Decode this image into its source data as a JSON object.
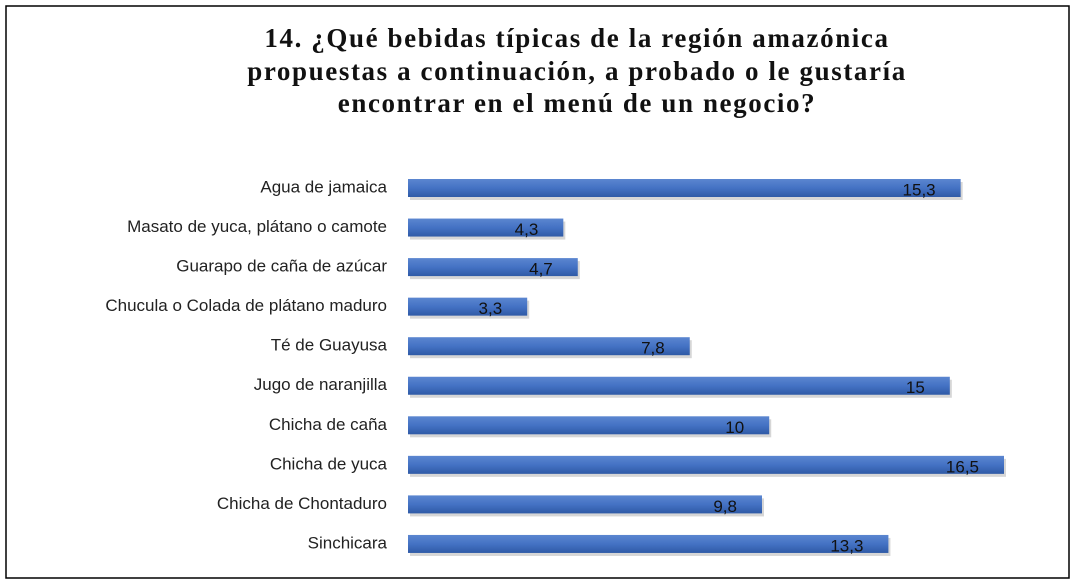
{
  "chart_data": {
    "type": "bar",
    "orientation": "horizontal",
    "title": [
      "14. ¿Qué bebidas típicas de la región amazónica",
      "propuestas a continuación, a probado o le gustaría",
      "encontrar en el menú de un negocio?"
    ],
    "categories": [
      "Agua de jamaica",
      "Masato de yuca, plátano o camote",
      "Guarapo de caña de azúcar",
      "Chucula o Colada de plátano maduro",
      "Té de Guayusa",
      "Jugo de naranjilla",
      "Chicha de caña",
      "Chicha de yuca",
      "Chicha de Chontaduro",
      "Sinchicara"
    ],
    "values": [
      15.3,
      4.3,
      4.7,
      3.3,
      7.8,
      15,
      10,
      16.5,
      9.8,
      13.3
    ],
    "value_labels": [
      "15,3",
      "4,3",
      "4,7",
      "3,3",
      "7,8",
      "15",
      "10",
      "16,5",
      "9,8",
      "13,3"
    ],
    "color": "#4472c4"
  }
}
